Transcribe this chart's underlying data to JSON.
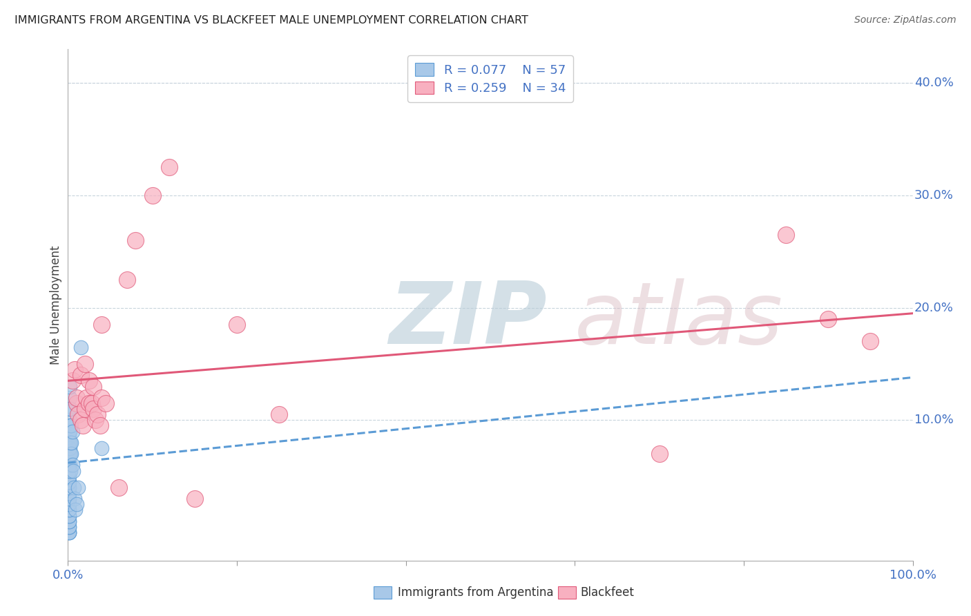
{
  "title": "IMMIGRANTS FROM ARGENTINA VS BLACKFEET MALE UNEMPLOYMENT CORRELATION CHART",
  "source": "Source: ZipAtlas.com",
  "ylabel": "Male Unemployment",
  "right_yticks": [
    0.0,
    0.1,
    0.2,
    0.3,
    0.4
  ],
  "right_yticklabels": [
    "",
    "10.0%",
    "20.0%",
    "30.0%",
    "40.0%"
  ],
  "xlim": [
    0.0,
    1.0
  ],
  "ylim": [
    -0.025,
    0.43
  ],
  "legend_r1": "R = 0.077",
  "legend_n1": "N = 57",
  "legend_r2": "R = 0.259",
  "legend_n2": "N = 34",
  "argentina_color": "#a8c8e8",
  "blackfeet_color": "#f8b0c0",
  "argentina_line_color": "#5b9bd5",
  "blackfeet_line_color": "#e05878",
  "watermark_zip": "ZIP",
  "watermark_atlas": "atlas",
  "watermark_color_zip": "#c8d8e8",
  "watermark_color_atlas": "#d8c8c8",
  "argentina_x": [
    0.001,
    0.001,
    0.001,
    0.001,
    0.001,
    0.001,
    0.001,
    0.001,
    0.001,
    0.001,
    0.001,
    0.001,
    0.001,
    0.001,
    0.001,
    0.001,
    0.001,
    0.001,
    0.001,
    0.001,
    0.001,
    0.001,
    0.001,
    0.001,
    0.001,
    0.001,
    0.001,
    0.001,
    0.001,
    0.001,
    0.002,
    0.002,
    0.002,
    0.002,
    0.002,
    0.002,
    0.002,
    0.002,
    0.002,
    0.003,
    0.003,
    0.003,
    0.003,
    0.003,
    0.004,
    0.004,
    0.004,
    0.005,
    0.005,
    0.006,
    0.007,
    0.008,
    0.009,
    0.01,
    0.012,
    0.015,
    0.04
  ],
  "argentina_y": [
    0.0,
    0.0,
    0.0,
    0.005,
    0.005,
    0.01,
    0.01,
    0.015,
    0.015,
    0.02,
    0.02,
    0.025,
    0.025,
    0.03,
    0.03,
    0.035,
    0.035,
    0.04,
    0.04,
    0.045,
    0.045,
    0.05,
    0.055,
    0.06,
    0.065,
    0.07,
    0.075,
    0.08,
    0.085,
    0.09,
    0.06,
    0.07,
    0.075,
    0.08,
    0.09,
    0.1,
    0.11,
    0.12,
    0.13,
    0.055,
    0.07,
    0.08,
    0.095,
    0.11,
    0.07,
    0.08,
    0.095,
    0.06,
    0.09,
    0.055,
    0.04,
    0.03,
    0.02,
    0.025,
    0.04,
    0.165,
    0.075
  ],
  "blackfeet_x": [
    0.005,
    0.008,
    0.01,
    0.01,
    0.012,
    0.015,
    0.015,
    0.018,
    0.02,
    0.02,
    0.022,
    0.025,
    0.025,
    0.028,
    0.03,
    0.03,
    0.032,
    0.035,
    0.038,
    0.04,
    0.04,
    0.045,
    0.06,
    0.07,
    0.08,
    0.1,
    0.12,
    0.15,
    0.2,
    0.25,
    0.7,
    0.85,
    0.9,
    0.95
  ],
  "blackfeet_y": [
    0.135,
    0.145,
    0.115,
    0.12,
    0.105,
    0.1,
    0.14,
    0.095,
    0.11,
    0.15,
    0.12,
    0.115,
    0.135,
    0.115,
    0.11,
    0.13,
    0.1,
    0.105,
    0.095,
    0.185,
    0.12,
    0.115,
    0.04,
    0.225,
    0.26,
    0.3,
    0.325,
    0.03,
    0.185,
    0.105,
    0.07,
    0.265,
    0.19,
    0.17
  ],
  "argentina_trend_x": [
    0.0,
    1.0
  ],
  "argentina_trend_y": [
    0.062,
    0.138
  ],
  "blackfeet_trend_x": [
    0.0,
    1.0
  ],
  "blackfeet_trend_y": [
    0.135,
    0.195
  ]
}
